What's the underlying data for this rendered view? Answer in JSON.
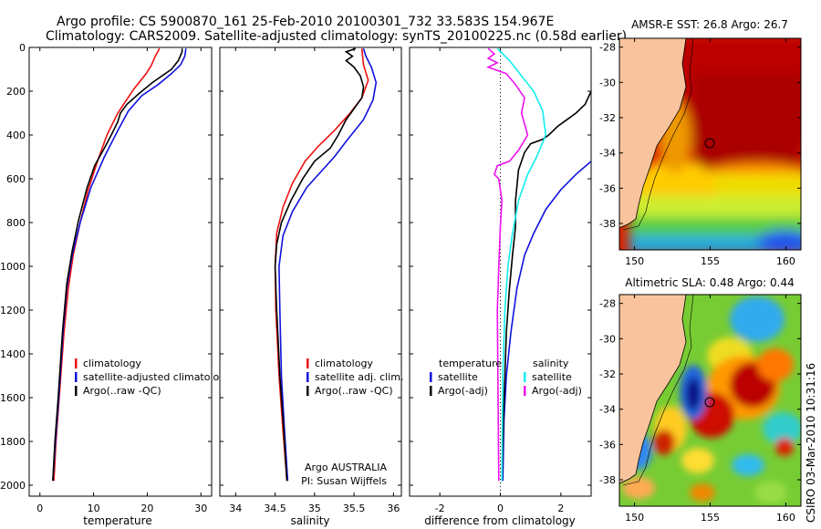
{
  "header": {
    "line1": "Argo profile: CS 5900870_161 25-Feb-2010 20100301_732 33.583S 154.967E",
    "line2": "Climatology: CARS2009. Satellite-adjusted climatology: synTS_20100225.nc (0.58d earlier)"
  },
  "side_label": "CSIRO 03-Mar-2010 10:31:16",
  "colors": {
    "climatology": "#ee1111",
    "satellite": "#1111dd",
    "argo": "#000000",
    "argo_salinity_diff": "#ee11ee",
    "satellite_salinity_diff": "#11eeee",
    "land": "#f9c49d"
  },
  "chart_data": [
    {
      "type": "line",
      "xlabel": "temperature",
      "ylabel": "",
      "xlim": [
        -2,
        32
      ],
      "ylim": [
        2050,
        0
      ],
      "xticks": [
        0,
        10,
        20,
        30
      ],
      "yticks": [
        0,
        200,
        400,
        600,
        800,
        1000,
        1200,
        1400,
        1600,
        1800,
        2000
      ],
      "legend": [
        "climatology",
        "satellite-adjusted climatology",
        "Argo(..raw -QC)"
      ],
      "series": [
        {
          "name": "climatology",
          "color": "#ee1111",
          "points": [
            [
              22.3,
              5
            ],
            [
              21.5,
              40
            ],
            [
              20.8,
              80
            ],
            [
              19.8,
              120
            ],
            [
              17.5,
              190
            ],
            [
              14.5,
              300
            ],
            [
              12.5,
              400
            ],
            [
              11.0,
              500
            ],
            [
              9.0,
              650
            ],
            [
              7.5,
              800
            ],
            [
              6.2,
              950
            ],
            [
              5.3,
              1100
            ],
            [
              4.5,
              1300
            ],
            [
              3.6,
              1600
            ],
            [
              3.0,
              1800
            ],
            [
              2.6,
              1980
            ]
          ]
        },
        {
          "name": "satellite-adjusted climatology",
          "color": "#1111dd",
          "points": [
            [
              27.2,
              5
            ],
            [
              27.0,
              40
            ],
            [
              26.2,
              80
            ],
            [
              24.5,
              120
            ],
            [
              22.0,
              170
            ],
            [
              19.0,
              220
            ],
            [
              16.5,
              290
            ],
            [
              14.5,
              380
            ],
            [
              12.0,
              500
            ],
            [
              9.5,
              640
            ],
            [
              7.5,
              800
            ],
            [
              6.0,
              950
            ],
            [
              5.0,
              1100
            ],
            [
              4.3,
              1300
            ],
            [
              3.5,
              1600
            ],
            [
              2.9,
              1800
            ],
            [
              2.4,
              1980
            ]
          ]
        },
        {
          "name": "Argo(..raw -QC)",
          "color": "#000000",
          "points": [
            [
              26.5,
              5
            ],
            [
              26.5,
              20
            ],
            [
              25.8,
              60
            ],
            [
              24.5,
              100
            ],
            [
              21.0,
              160
            ],
            [
              18.5,
              210
            ],
            [
              16.2,
              260
            ],
            [
              15.0,
              300
            ],
            [
              14.5,
              340
            ],
            [
              13.3,
              400
            ],
            [
              12.0,
              460
            ],
            [
              10.2,
              540
            ],
            [
              8.8,
              640
            ],
            [
              7.2,
              790
            ],
            [
              6.0,
              930
            ],
            [
              5.0,
              1080
            ],
            [
              4.2,
              1300
            ],
            [
              3.4,
              1600
            ],
            [
              2.8,
              1800
            ],
            [
              2.4,
              1980
            ]
          ]
        }
      ]
    },
    {
      "type": "line",
      "xlabel": "salinity",
      "xlim": [
        33.8,
        36.1
      ],
      "ylim": [
        2050,
        0
      ],
      "xticks": [
        34,
        34.5,
        35,
        35.5,
        36
      ],
      "legend": [
        "climatology",
        "satellite adj. clim.",
        "Argo(..raw -QC)"
      ],
      "annotation": [
        "Argo AUSTRALIA",
        "PI: Susan Wijffels"
      ],
      "series": [
        {
          "name": "climatology",
          "color": "#ee1111",
          "points": [
            [
              35.6,
              5
            ],
            [
              35.62,
              80
            ],
            [
              35.68,
              150
            ],
            [
              35.6,
              230
            ],
            [
              35.45,
              300
            ],
            [
              35.25,
              380
            ],
            [
              35.05,
              450
            ],
            [
              34.88,
              520
            ],
            [
              34.72,
              620
            ],
            [
              34.6,
              730
            ],
            [
              34.52,
              850
            ],
            [
              34.5,
              1000
            ],
            [
              34.51,
              1200
            ],
            [
              34.55,
              1500
            ],
            [
              34.6,
              1750
            ],
            [
              34.65,
              1980
            ]
          ]
        },
        {
          "name": "satellite adj. clim.",
          "color": "#1111dd",
          "points": [
            [
              35.62,
              5
            ],
            [
              35.65,
              40
            ],
            [
              35.72,
              90
            ],
            [
              35.78,
              160
            ],
            [
              35.74,
              240
            ],
            [
              35.62,
              330
            ],
            [
              35.42,
              420
            ],
            [
              35.25,
              500
            ],
            [
              35.1,
              560
            ],
            [
              34.9,
              640
            ],
            [
              34.72,
              750
            ],
            [
              34.6,
              860
            ],
            [
              34.55,
              1000
            ],
            [
              34.56,
              1200
            ],
            [
              34.58,
              1500
            ],
            [
              34.62,
              1750
            ],
            [
              34.66,
              1980
            ]
          ]
        },
        {
          "name": "Argo(..raw -QC)",
          "color": "#000000",
          "points": [
            [
              35.52,
              5
            ],
            [
              35.4,
              20
            ],
            [
              35.48,
              40
            ],
            [
              35.4,
              60
            ],
            [
              35.5,
              90
            ],
            [
              35.58,
              130
            ],
            [
              35.62,
              180
            ],
            [
              35.6,
              230
            ],
            [
              35.5,
              280
            ],
            [
              35.4,
              330
            ],
            [
              35.3,
              400
            ],
            [
              35.2,
              460
            ],
            [
              35.0,
              520
            ],
            [
              34.85,
              600
            ],
            [
              34.7,
              700
            ],
            [
              34.58,
              800
            ],
            [
              34.52,
              900
            ],
            [
              34.5,
              1000
            ],
            [
              34.52,
              1200
            ],
            [
              34.56,
              1500
            ],
            [
              34.61,
              1750
            ],
            [
              34.65,
              1980
            ]
          ]
        }
      ]
    },
    {
      "type": "line",
      "xlabel": "difference from climatology",
      "xlim": [
        -3,
        3
      ],
      "ylim": [
        2050,
        0
      ],
      "xticks": [
        -2,
        0,
        2
      ],
      "legend": [
        {
          "heading": "temperature",
          "items": [
            "satellite",
            "Argo(-adj)"
          ]
        },
        {
          "heading": "salinity",
          "items": [
            "satellite",
            "Argo(-adj)"
          ]
        }
      ],
      "series": [
        {
          "name": "temperature satellite",
          "color": "#1111dd",
          "points": [
            [
              3.0,
              520
            ],
            [
              2.5,
              580
            ],
            [
              2.0,
              650
            ],
            [
              1.5,
              740
            ],
            [
              1.1,
              850
            ],
            [
              0.8,
              950
            ],
            [
              0.55,
              1100
            ],
            [
              0.35,
              1300
            ],
            [
              0.2,
              1500
            ],
            [
              0.12,
              1700
            ],
            [
              0.08,
              1980
            ]
          ]
        },
        {
          "name": "temperature Argo(-adj)",
          "color": "#000000",
          "points": [
            [
              3.0,
              200
            ],
            [
              2.8,
              260
            ],
            [
              2.5,
              300
            ],
            [
              2.2,
              330
            ],
            [
              1.9,
              360
            ],
            [
              1.6,
              400
            ],
            [
              1.4,
              420
            ],
            [
              1.0,
              440
            ],
            [
              0.8,
              480
            ],
            [
              0.6,
              560
            ],
            [
              0.5,
              700
            ],
            [
              0.5,
              820
            ],
            [
              0.4,
              950
            ],
            [
              0.3,
              1100
            ],
            [
              0.2,
              1300
            ],
            [
              0.15,
              1500
            ],
            [
              0.1,
              1700
            ],
            [
              0.05,
              1980
            ]
          ]
        },
        {
          "name": "salinity satellite",
          "color": "#11eeee",
          "points": [
            [
              -0.1,
              5
            ],
            [
              0.3,
              60
            ],
            [
              0.7,
              130
            ],
            [
              1.1,
              200
            ],
            [
              1.4,
              290
            ],
            [
              1.5,
              400
            ],
            [
              1.2,
              500
            ],
            [
              0.9,
              580
            ],
            [
              0.6,
              700
            ],
            [
              0.4,
              850
            ],
            [
              0.25,
              1000
            ],
            [
              0.15,
              1200
            ],
            [
              0.08,
              1500
            ],
            [
              0.05,
              1980
            ]
          ]
        },
        {
          "name": "salinity Argo(-adj)",
          "color": "#ee11ee",
          "points": [
            [
              -0.4,
              5
            ],
            [
              -0.2,
              30
            ],
            [
              -0.4,
              50
            ],
            [
              -0.1,
              70
            ],
            [
              -0.4,
              90
            ],
            [
              0.2,
              120
            ],
            [
              0.5,
              170
            ],
            [
              0.8,
              230
            ],
            [
              0.7,
              300
            ],
            [
              0.9,
              400
            ],
            [
              0.6,
              470
            ],
            [
              0.3,
              520
            ],
            [
              -0.1,
              540
            ],
            [
              -0.2,
              580
            ],
            [
              -0.05,
              600
            ],
            [
              0.05,
              700
            ],
            [
              0.0,
              820
            ],
            [
              -0.05,
              1000
            ],
            [
              -0.1,
              1200
            ],
            [
              -0.08,
              1500
            ],
            [
              -0.05,
              1980
            ]
          ]
        }
      ]
    },
    {
      "type": "heatmap",
      "title": "AMSR-E SST: 26.8 Argo: 26.7",
      "xlim": [
        149,
        161
      ],
      "ylim": [
        -39.5,
        -27.5
      ],
      "xticks": [
        150,
        155,
        160
      ],
      "yticks": [
        -28,
        -30,
        -32,
        -34,
        -36,
        -38
      ],
      "float_position": [
        154.967,
        -33.583
      ]
    },
    {
      "type": "heatmap",
      "title": "Altimetric SLA: 0.48 Argo: 0.44",
      "xlim": [
        149,
        161
      ],
      "ylim": [
        -39.5,
        -27.5
      ],
      "xticks": [
        150,
        155,
        160
      ],
      "yticks": [
        -28,
        -30,
        -32,
        -34,
        -36,
        -38
      ],
      "float_position": [
        154.967,
        -33.583
      ]
    }
  ]
}
